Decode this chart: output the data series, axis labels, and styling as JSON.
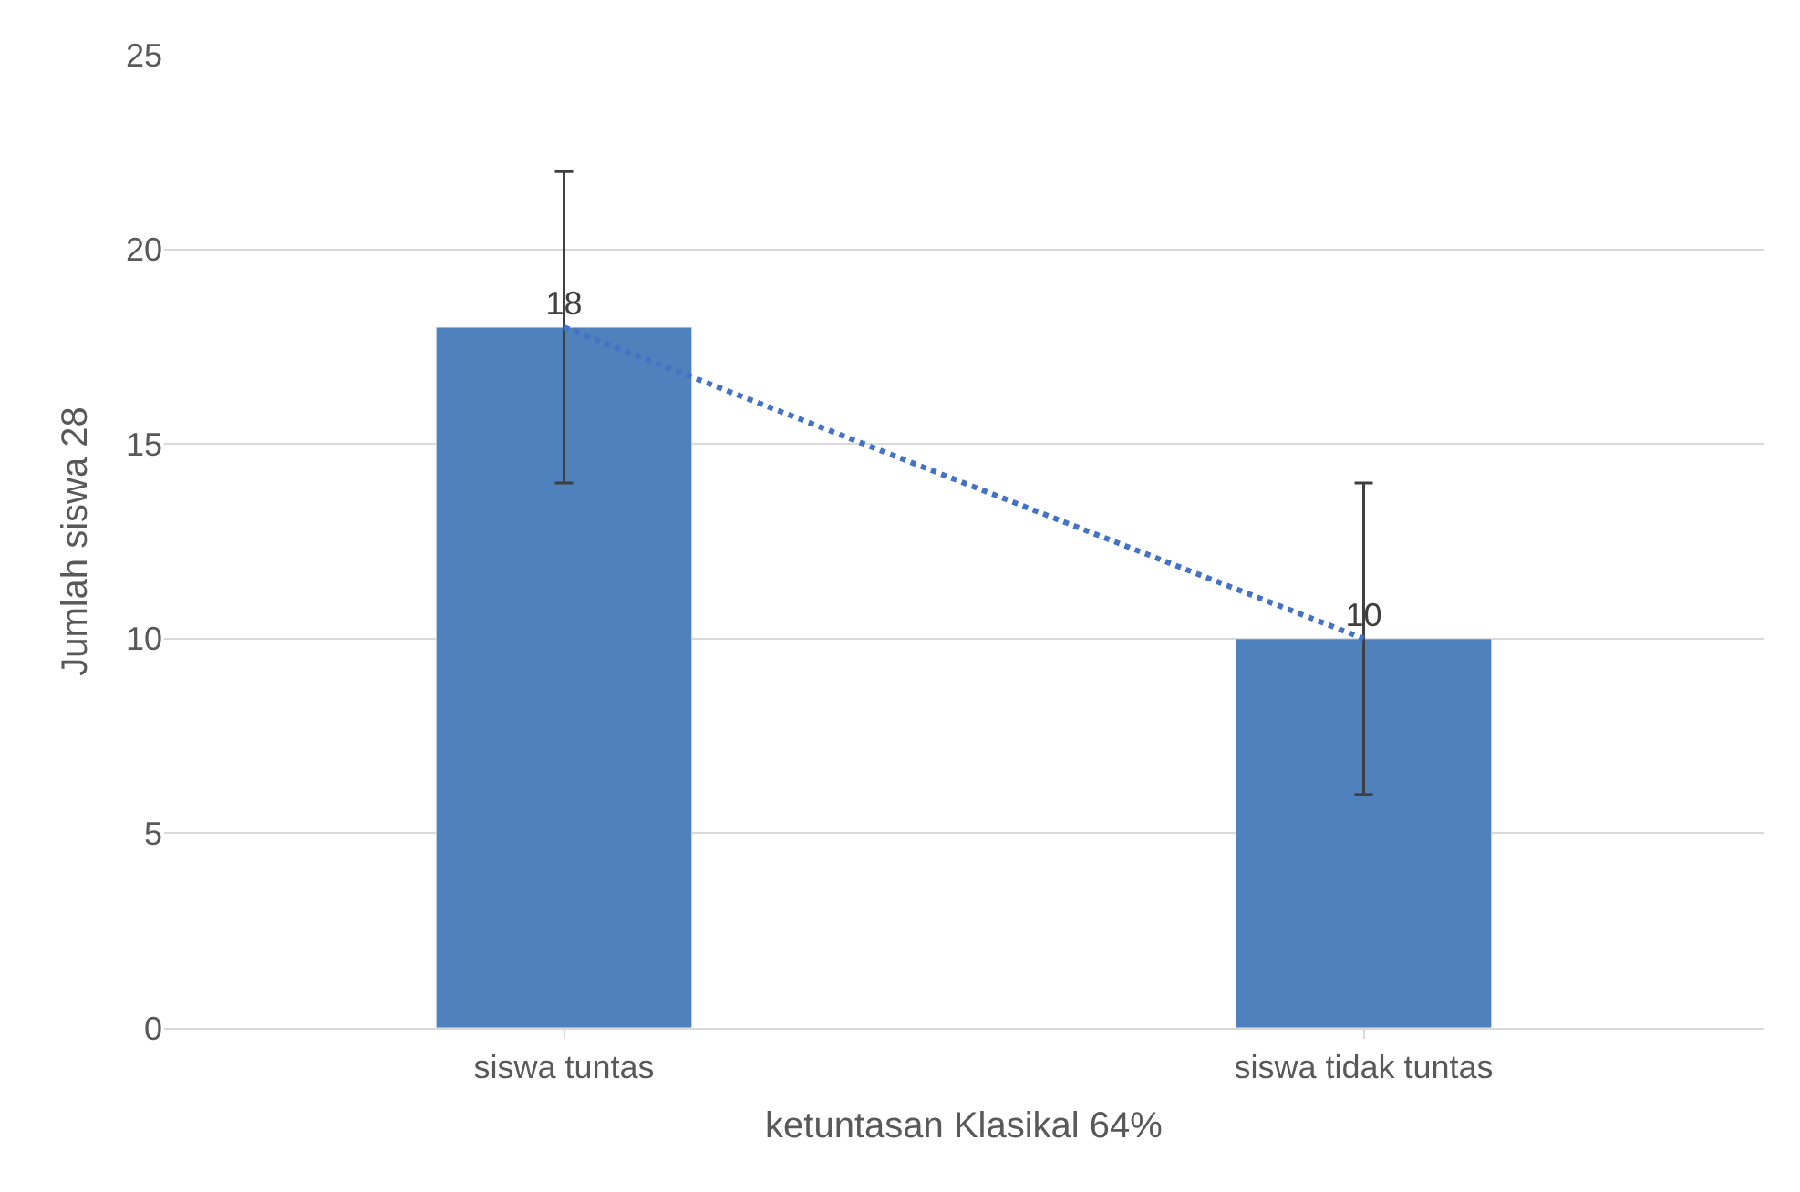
{
  "chart_data": {
    "type": "bar",
    "xlabel": "ketuntasan Klasikal 64%",
    "ylabel": "Jumlah siswa 28",
    "categories": [
      "siswa tuntas",
      "siswa tidak tuntas"
    ],
    "series": [
      {
        "color": "#4f81bd",
        "values": [
          18,
          10
        ],
        "errors": [
          4,
          4
        ],
        "value_labels": [
          "18",
          "10"
        ]
      },
      {
        "type": "line",
        "color": "#4472c4",
        "values": [
          18,
          10
        ],
        "line_style": "dotted",
        "marker": "none"
      }
    ],
    "ylim": [
      0,
      25
    ],
    "yticks": [
      0,
      5,
      10,
      15,
      20,
      25
    ],
    "grid": "y"
  }
}
